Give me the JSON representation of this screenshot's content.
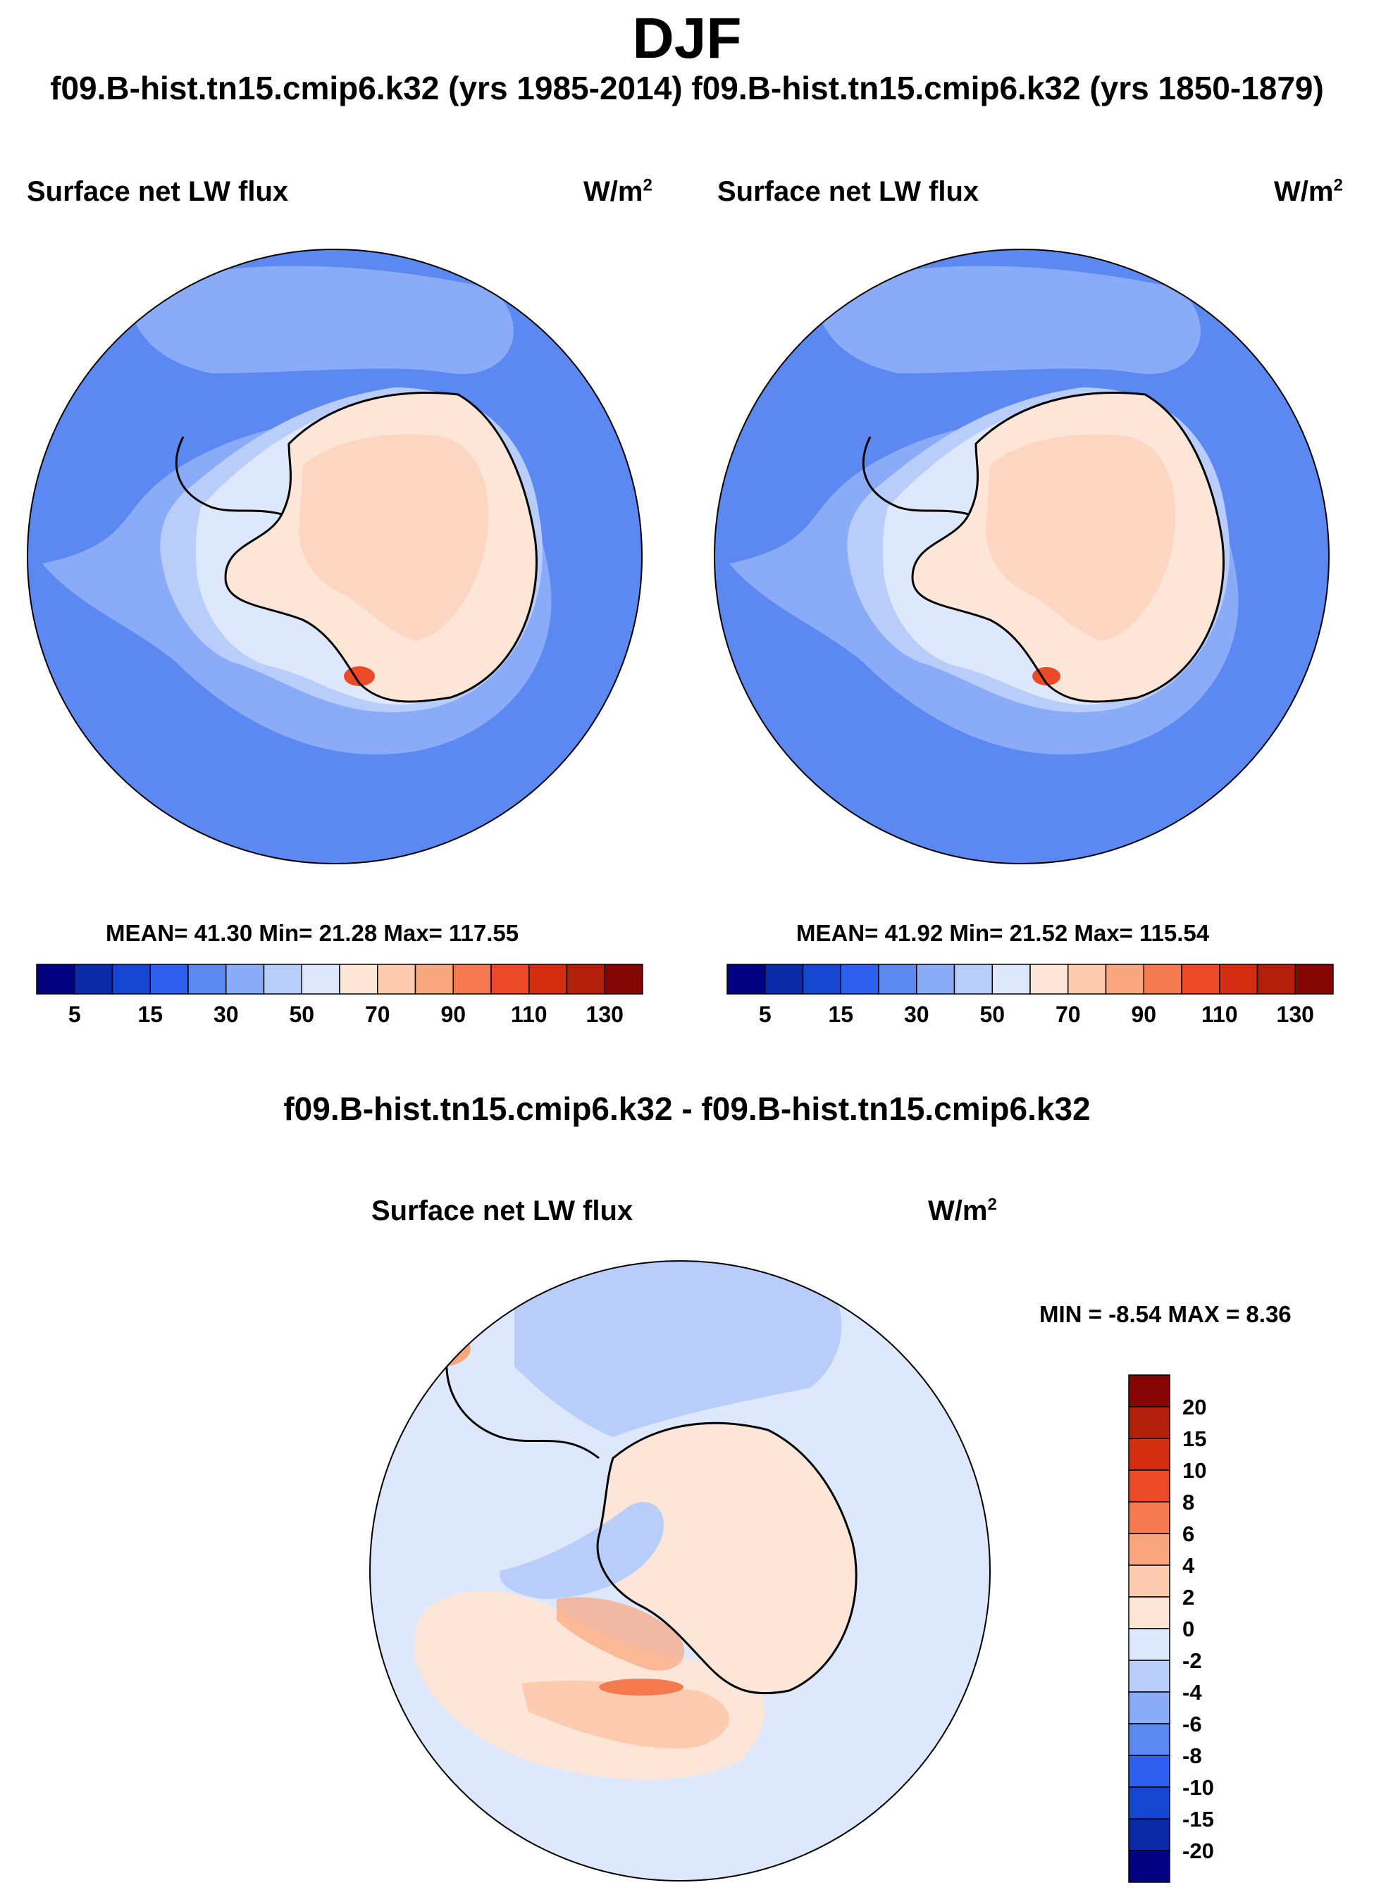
{
  "title": "DJF",
  "run_titles": "f09.B-hist.tn15.cmip6.k32 (yrs 1985-2014) f09.B-hist.tn15.cmip6.k32 (yrs 1850-1879)",
  "diff_title": "f09.B-hist.tn15.cmip6.k32 - f09.B-hist.tn15.cmip6.k32",
  "colors": {
    "abs_scale": [
      "#000080",
      "#0a2aa8",
      "#1446cf",
      "#2e5fee",
      "#5c88f2",
      "#8aabf7",
      "#b8cdfa",
      "#dde8fd",
      "#fde6d8",
      "#fccbb0",
      "#f9a57e",
      "#f57a4f",
      "#ec4a26",
      "#d42e10",
      "#b21f0a",
      "#850404"
    ],
    "diff_scale": [
      "#850404",
      "#b21f0a",
      "#d42e10",
      "#ec4a26",
      "#f57a4f",
      "#f9a57e",
      "#fccbb0",
      "#fde6d8",
      "#dde8fd",
      "#b8cdfa",
      "#8aabf7",
      "#5c88f2",
      "#2e5fee",
      "#1446cf",
      "#0a2aa8",
      "#000080"
    ]
  },
  "chart_data": [
    {
      "type": "heatmap",
      "projection": "south-polar-stereographic",
      "title": "Surface net LW flux",
      "units_base": "W/m",
      "units_exp": "2",
      "stats": {
        "label": "MEAN=  41.30  Min=  21.28  Max= 117.55",
        "mean": 41.3,
        "min": 21.28,
        "max": 117.55
      },
      "colorbar": {
        "orientation": "horizontal",
        "tick_labels": [
          "5",
          "15",
          "30",
          "50",
          "70",
          "90",
          "110",
          "130"
        ]
      }
    },
    {
      "type": "heatmap",
      "projection": "south-polar-stereographic",
      "title": "Surface net LW flux",
      "units_base": "W/m",
      "units_exp": "2",
      "stats": {
        "label": "MEAN=  41.92  Min=  21.52  Max= 115.54",
        "mean": 41.92,
        "min": 21.52,
        "max": 115.54
      },
      "colorbar": {
        "orientation": "horizontal",
        "tick_labels": [
          "5",
          "15",
          "30",
          "50",
          "70",
          "90",
          "110",
          "130"
        ]
      }
    },
    {
      "type": "heatmap",
      "projection": "south-polar-stereographic",
      "title": "Surface net LW flux",
      "units_base": "W/m",
      "units_exp": "2",
      "stats": {
        "label": "MIN =  -8.54 MAX =   8.36",
        "min": -8.54,
        "max": 8.36
      },
      "colorbar": {
        "orientation": "vertical",
        "tick_labels": [
          "20",
          "15",
          "10",
          "8",
          "6",
          "4",
          "2",
          "0",
          "-2",
          "-4",
          "-6",
          "-8",
          "-10",
          "-15",
          "-20"
        ]
      }
    }
  ]
}
